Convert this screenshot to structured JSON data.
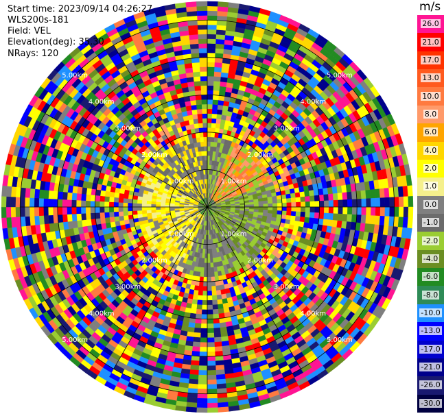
{
  "header": {
    "start_time": "Start time: 2023/09/14 04:26:27",
    "instrument": "WLS200s-181",
    "field": "Field: VEL",
    "elevation": "Elevation(deg): 35.30",
    "nrays": "NRays: 120"
  },
  "colorbar": {
    "unit": "m/s",
    "ticks": [
      "26.0",
      "21.0",
      "17.0",
      "13.0",
      "10.0",
      "8.0",
      "6.0",
      "4.0",
      "2.0",
      "1.0",
      "0.0",
      "-1.0",
      "-2.0",
      "-4.0",
      "-6.0",
      "-8.0",
      "-10.0",
      "-13.0",
      "-17.0",
      "-21.0",
      "-26.0",
      "-30.0"
    ],
    "colors": [
      "#ff1493",
      "#ff0000",
      "#ff3300",
      "#ff5a1f",
      "#ff7a40",
      "#ff9a6a",
      "#ffa500",
      "#ffd700",
      "#ffff00",
      "#f5f08c",
      "#7f7f7f",
      "#6b6b6b",
      "#9acd32",
      "#6b8e23",
      "#228b22",
      "#2e8b57",
      "#1e90ff",
      "#0000ff",
      "#0000cd",
      "#00008b",
      "#191970",
      "#000040"
    ]
  },
  "chart_data": {
    "type": "ppi",
    "field": "VEL",
    "units": "m/s",
    "elevation_deg": 35.3,
    "n_rays": 120,
    "range_ring_labels": [
      "1.00km",
      "2.00km",
      "3.00km",
      "4.00km",
      "5.00km"
    ],
    "range_rings_km": [
      1.0,
      2.0,
      3.0,
      4.0,
      5.0
    ],
    "max_range_km": 5.5,
    "zones": [
      {
        "r_max_km": 0.35,
        "palette": [
          "#7f7f7f",
          "#6b6b6b",
          "#228b22",
          "#9acd32"
        ]
      },
      {
        "r_max_km": 1.9,
        "sectors": [
          {
            "az_from": 0,
            "az_to": 20,
            "palette": [
              "#7f7f7f",
              "#6b6b6b",
              "#9acd32"
            ]
          },
          {
            "az_from": 20,
            "az_to": 70,
            "palette": [
              "#ff7a40",
              "#ff9a6a",
              "#ffa500",
              "#9acd32"
            ]
          },
          {
            "az_from": 70,
            "az_to": 160,
            "palette": [
              "#9acd32",
              "#6b8e23",
              "#7f7f7f"
            ]
          },
          {
            "az_from": 160,
            "az_to": 200,
            "palette": [
              "#9acd32",
              "#7f7f7f",
              "#6b6b6b"
            ]
          },
          {
            "az_from": 200,
            "az_to": 300,
            "palette": [
              "#ffff00",
              "#ffd700",
              "#f5f08c",
              "#7f7f7f"
            ]
          },
          {
            "az_from": 300,
            "az_to": 360,
            "palette": [
              "#ffff00",
              "#7f7f7f",
              "#6b6b6b",
              "#ffd700"
            ]
          }
        ]
      },
      {
        "r_max_km": 2.6,
        "palette": [
          "#ffff00",
          "#ffd700",
          "#7f7f7f",
          "#ff9a6a",
          "#0000ff",
          "#9acd32",
          "#ff0000"
        ]
      },
      {
        "r_max_km": 5.5,
        "palette": [
          "#ff1493",
          "#ff0000",
          "#ffff00",
          "#0000ff",
          "#00008b",
          "#228b22",
          "#9acd32",
          "#ff7a40",
          "#6b8e23",
          "#1e90ff",
          "#ffd700",
          "#7f7f7f",
          "#191970"
        ]
      }
    ]
  }
}
